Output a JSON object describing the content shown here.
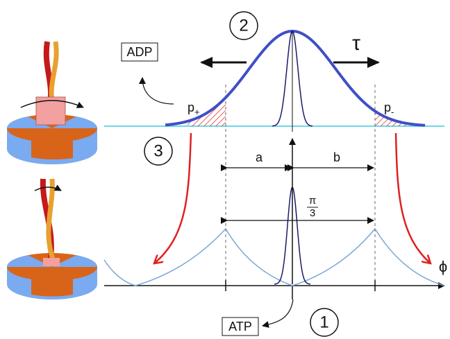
{
  "labels": {
    "adp": "ADP",
    "atp": "ATP",
    "steps": [
      "1",
      "2",
      "3"
    ],
    "tau": "τ",
    "p_plus": {
      "base": "p",
      "sub": "+"
    },
    "p_minus": {
      "base": "p",
      "sub": "-"
    },
    "a": "a",
    "b": "b",
    "pi_third": {
      "num": "π",
      "den": "3"
    },
    "phi": "ϕ"
  }
}
